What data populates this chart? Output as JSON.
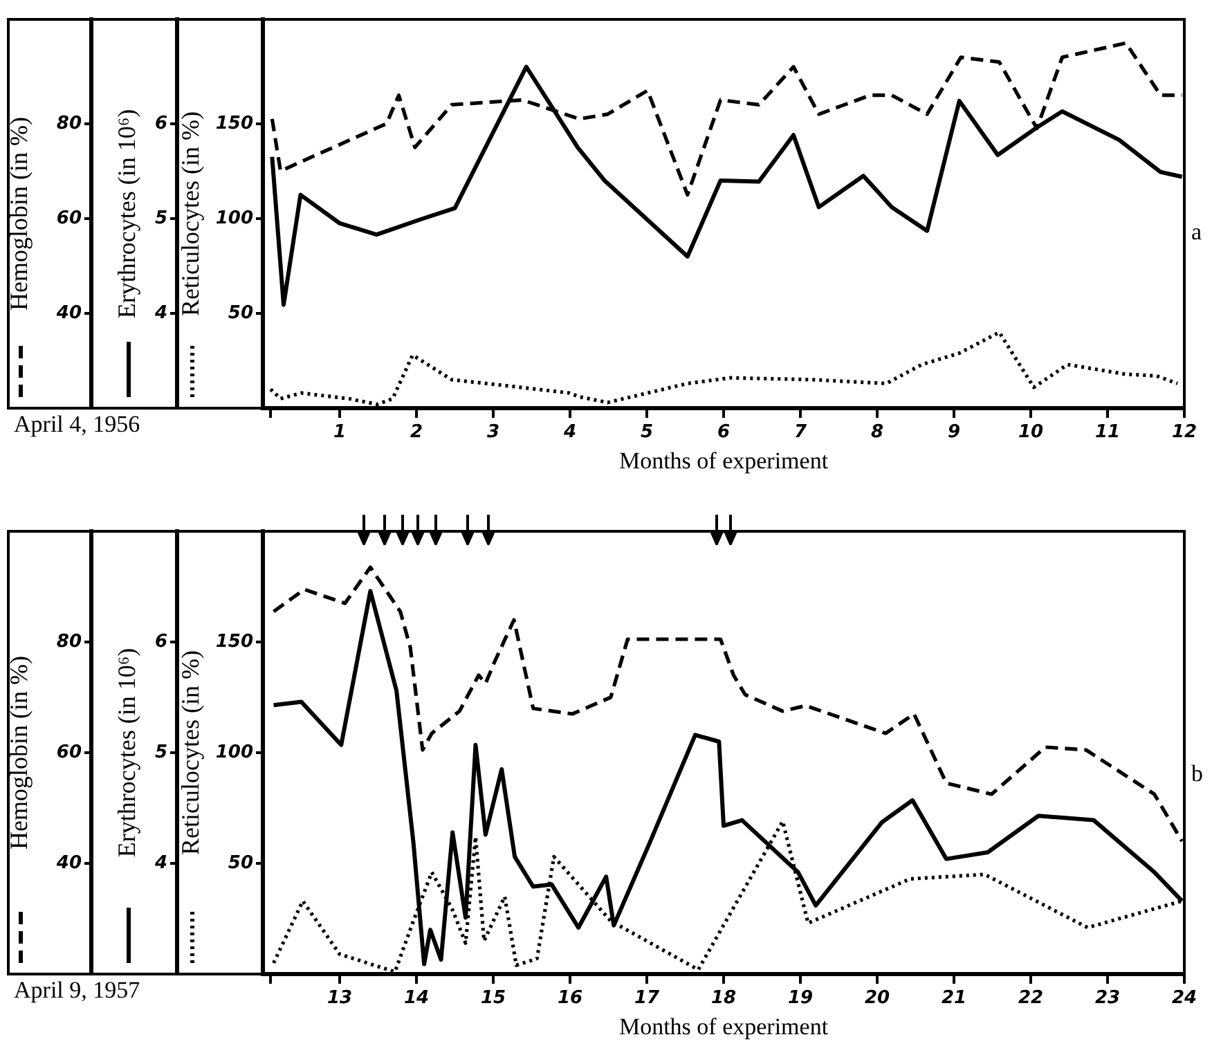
{
  "chart_data": [
    {
      "type": "line",
      "xlabel": "Months of experiment",
      "ylabel": "Reticulocytes (in %)",
      "y2label": "Hemoglobin (in %)",
      "y3label": "Erythrocytes (in 10⁶)",
      "annotations": [
        "April 4, 1956",
        "a"
      ],
      "xlim": [
        0,
        12
      ],
      "xticks": [
        {
          "value": 0.1,
          "label": null
        },
        1,
        2,
        3,
        4,
        5,
        6,
        7,
        8,
        9,
        10,
        11,
        12
      ],
      "ylim": [
        0,
        205
      ],
      "yticks": [
        50,
        100,
        150
      ],
      "y2lim": [
        20,
        102
      ],
      "y2ticks": [
        40,
        60,
        80
      ],
      "y3lim": [
        3,
        7.1
      ],
      "y3ticks": [
        4,
        5,
        6
      ],
      "grid": false,
      "legend": false,
      "marker": "none",
      "series": [
        {
          "axis": "y2",
          "line_style": "dashed",
          "color": "#000000",
          "x": [
            0.12,
            0.23,
            0.5,
            1.61,
            1.77,
            1.98,
            2.46,
            3.38,
            4.12,
            4.49,
            5.01,
            5.53,
            5.96,
            6.46,
            6.91,
            7.24,
            7.91,
            8.19,
            8.65,
            9.09,
            9.59,
            10.08,
            10.41,
            11.24,
            11.69,
            11.97
          ],
          "values": [
            81,
            70,
            72,
            80,
            86,
            75,
            84,
            85,
            81,
            82,
            87,
            65,
            85,
            84,
            92,
            82,
            86,
            86,
            82,
            94,
            93,
            79,
            94,
            97,
            86,
            86
          ]
        },
        {
          "axis": "y3",
          "line_style": "solid",
          "color": "#000000",
          "x": [
            0.12,
            0.27,
            0.49,
            1.0,
            1.48,
            2.05,
            2.5,
            3.43,
            4.1,
            4.45,
            5.53,
            5.96,
            6.46,
            6.91,
            7.24,
            7.82,
            8.19,
            8.65,
            9.07,
            9.57,
            10.08,
            10.41,
            11.15,
            11.69,
            11.97
          ],
          "values": [
            5.65,
            4.09,
            5.25,
            4.95,
            4.83,
            4.99,
            5.11,
            6.6,
            5.75,
            5.4,
            4.6,
            5.4,
            5.39,
            5.88,
            5.12,
            5.45,
            5.12,
            4.87,
            6.24,
            5.67,
            5.96,
            6.13,
            5.83,
            5.49,
            5.44
          ]
        },
        {
          "axis": "y",
          "line_style": "dotted",
          "color": "#000000",
          "x": [
            0.1,
            0.23,
            0.5,
            1.12,
            1.49,
            1.69,
            1.95,
            2.46,
            3.14,
            3.99,
            4.12,
            4.49,
            5.53,
            6.09,
            7.18,
            8.12,
            8.58,
            9.07,
            9.59,
            10.04,
            10.48,
            11.22,
            11.64,
            11.91
          ],
          "values": [
            10,
            5,
            8,
            5,
            2,
            5,
            28,
            15,
            12,
            8,
            6,
            3,
            13,
            16,
            15,
            13,
            23,
            29,
            40,
            11,
            23,
            18,
            17,
            13
          ]
        }
      ]
    },
    {
      "type": "line",
      "xlabel": "Months of experiment",
      "ylabel": "Reticulocytes (in %)",
      "y2label": "Hemoglobin (in %)",
      "y3label": "Erythrocytes (in 10⁶)",
      "annotations": [
        "April 9, 1957",
        "b"
      ],
      "xlim": [
        12,
        24
      ],
      "xticks": [
        {
          "value": 12.1,
          "label": null
        },
        13,
        14,
        15,
        16,
        17,
        18,
        19,
        20,
        21,
        22,
        23,
        24
      ],
      "ylim": [
        0,
        200
      ],
      "yticks": [
        50,
        100,
        150
      ],
      "y2lim": [
        20,
        100
      ],
      "y2ticks": [
        40,
        60,
        80
      ],
      "y3lim": [
        3,
        7
      ],
      "y3ticks": [
        4,
        5,
        6
      ],
      "grid": false,
      "legend": false,
      "marker": "none",
      "series": [
        {
          "axis": "y2",
          "line_style": "dashed",
          "color": "#000000",
          "x": [
            12.14,
            12.54,
            13.07,
            13.4,
            13.79,
            13.92,
            14.08,
            14.2,
            14.56,
            14.81,
            14.9,
            15.02,
            15.27,
            15.52,
            16.03,
            16.53,
            16.75,
            17.96,
            18.13,
            18.28,
            18.77,
            19.07,
            20.11,
            20.48,
            20.9,
            21.49,
            22.19,
            22.72,
            23.61,
            23.97
          ],
          "values": [
            85.5,
            89.5,
            87,
            93.5,
            85.5,
            79,
            60.5,
            63.5,
            67.5,
            74,
            72.5,
            76.5,
            84,
            68,
            67,
            70,
            80.5,
            80.5,
            74,
            70.5,
            67.5,
            68.5,
            63.5,
            67,
            54.5,
            52.5,
            61,
            60.5,
            52.5,
            44
          ]
        },
        {
          "axis": "y3",
          "line_style": "solid",
          "color": "#000000",
          "x": [
            12.14,
            12.5,
            13.02,
            13.4,
            13.74,
            13.96,
            14.1,
            14.18,
            14.32,
            14.47,
            14.64,
            14.77,
            14.9,
            15.11,
            15.28,
            15.52,
            15.76,
            16.11,
            16.47,
            16.57,
            17.04,
            17.63,
            17.94,
            18.0,
            18.24,
            18.97,
            19.2,
            20.06,
            20.46,
            20.9,
            21.44,
            22.1,
            22.82,
            23.61,
            23.97
          ],
          "values": [
            5.43,
            5.46,
            5.07,
            6.46,
            5.56,
            4.19,
            3.09,
            3.4,
            3.13,
            4.28,
            3.51,
            5.07,
            4.26,
            4.85,
            4.06,
            3.79,
            3.81,
            3.42,
            3.88,
            3.44,
            4.19,
            5.16,
            5.1,
            4.34,
            4.39,
            3.92,
            3.62,
            4.37,
            4.57,
            4.04,
            4.1,
            4.43,
            4.39,
            3.92,
            3.66
          ]
        },
        {
          "axis": "y",
          "line_style": "dotted",
          "color": "#000000",
          "x": [
            12.14,
            12.52,
            13.0,
            13.72,
            13.96,
            14.2,
            14.47,
            14.64,
            14.77,
            14.88,
            15.15,
            15.3,
            15.57,
            15.79,
            16.53,
            17.67,
            18.77,
            19.1,
            20.43,
            21.4,
            22.74,
            23.97
          ],
          "values": [
            5,
            33,
            9,
            1,
            24,
            46,
            29,
            14,
            62,
            15,
            35,
            4,
            7,
            53,
            24,
            2,
            69,
            23,
            43,
            45,
            21,
            33
          ]
        }
      ]
    }
  ]
}
